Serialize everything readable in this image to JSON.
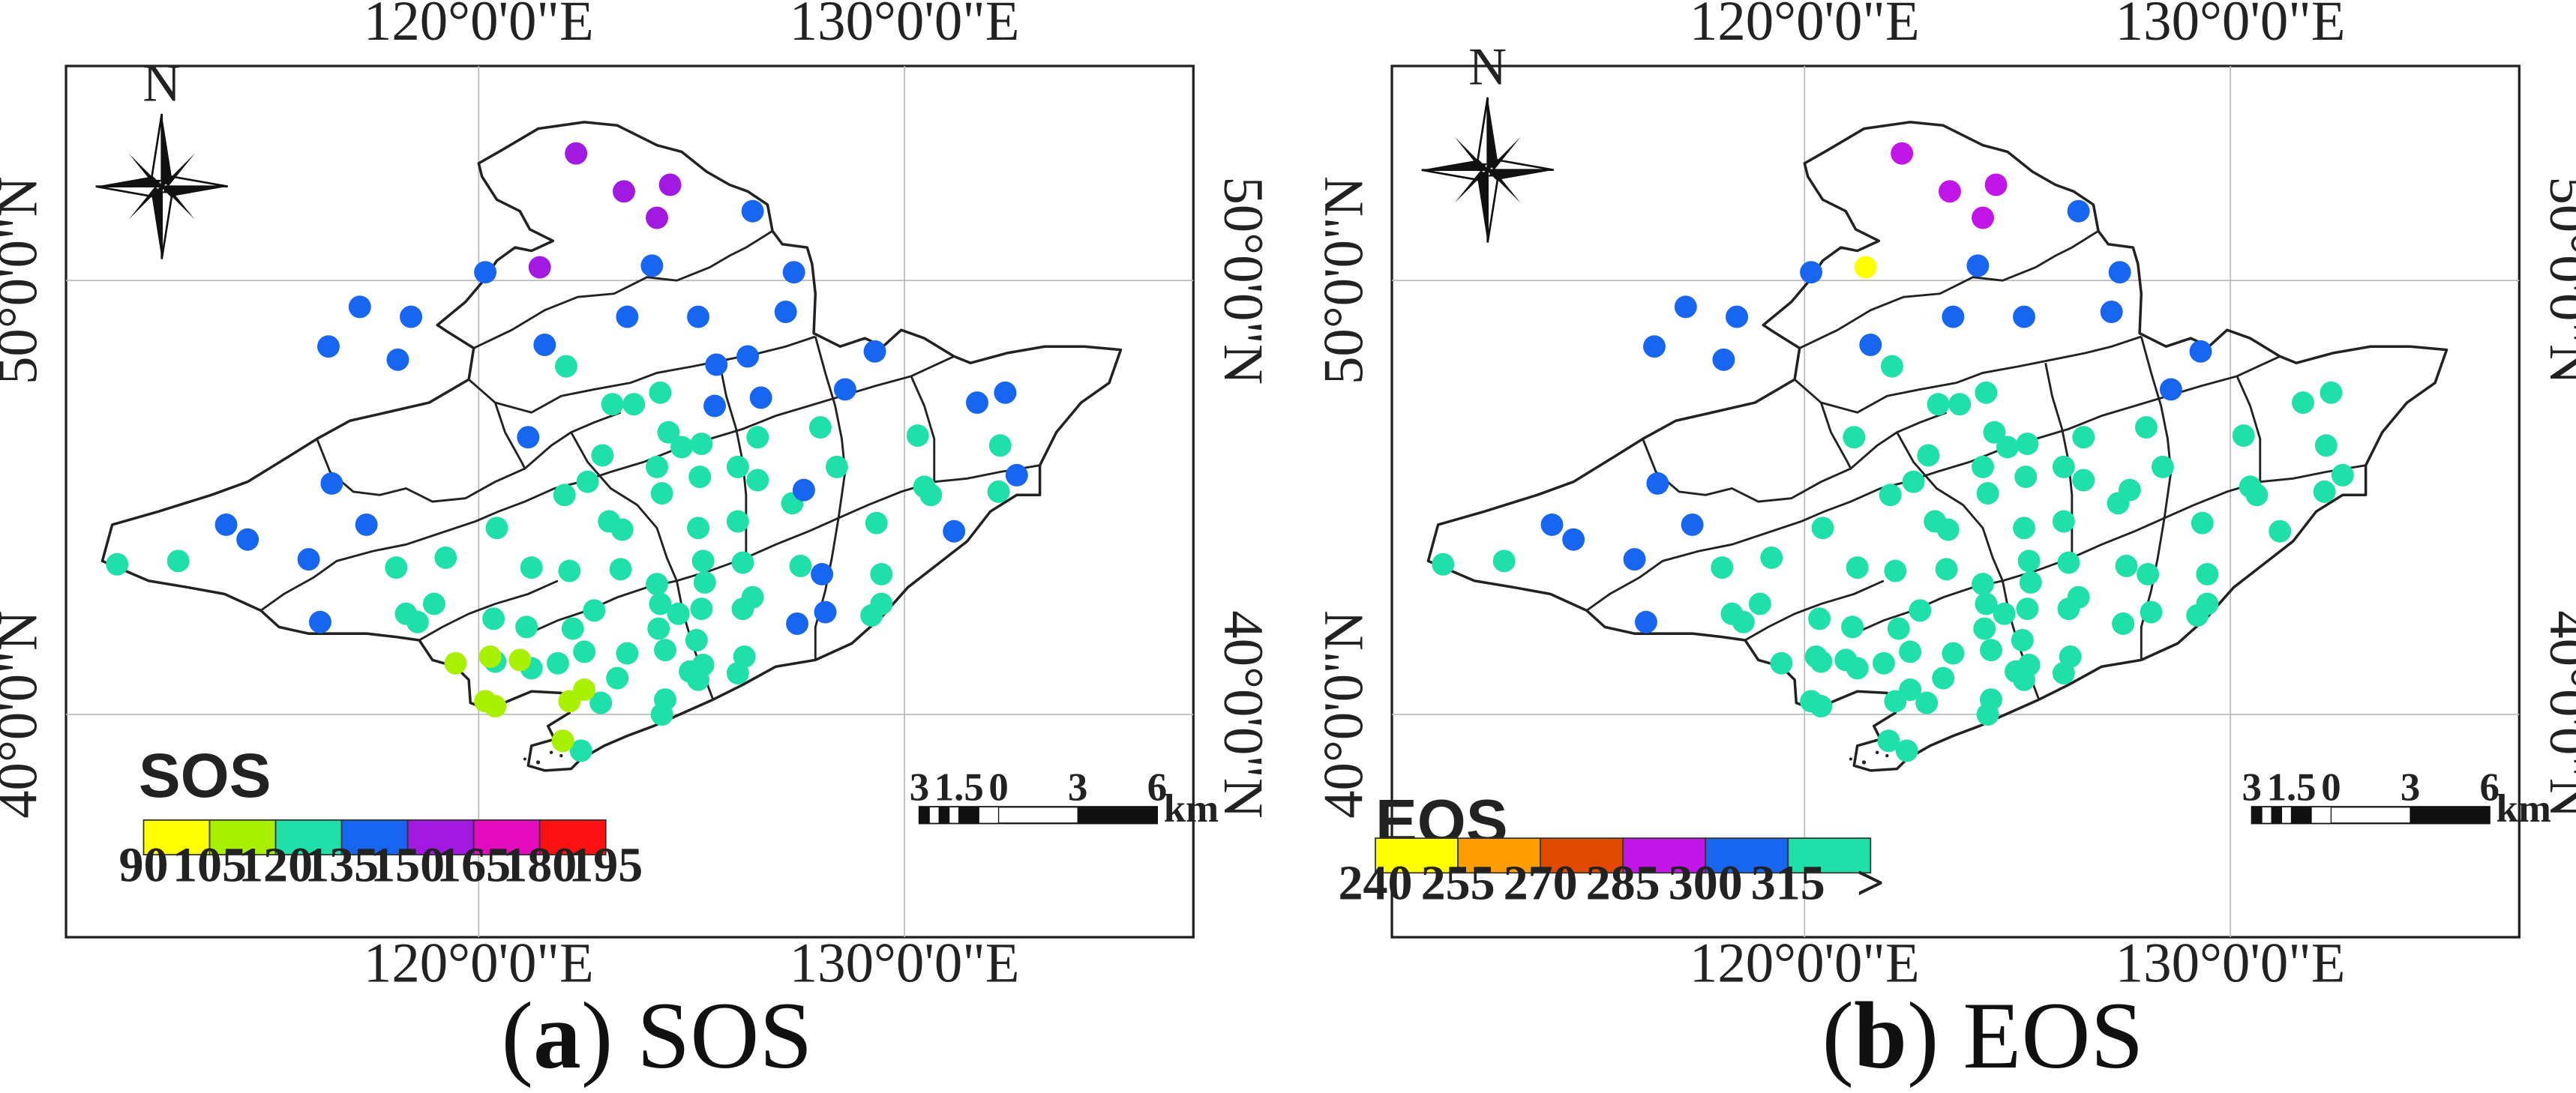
{
  "panels": [
    {
      "id": "a",
      "caption_letter": "a",
      "caption_text": " SOS",
      "caption_open": "(",
      "caption_close": ")",
      "x_ticks": [
        "120°0'0\"E",
        "130°0'0\"E"
      ],
      "y_ticks": [
        "50°0'0\"N",
        "40°0'0\"N"
      ],
      "north": "N",
      "legend": {
        "title": "SOS",
        "colors": [
          "#ffff00",
          "#a8f000",
          "#1fe0a8",
          "#1866f0",
          "#a21ae0",
          "#e20bbe",
          "#ff1111"
        ],
        "ticks": [
          "90",
          "105",
          "120",
          "135",
          "150",
          "165",
          "180",
          "195"
        ]
      },
      "scale": {
        "ticks": [
          "3",
          "1.5",
          "0",
          "3",
          "6"
        ],
        "unit": "km"
      }
    },
    {
      "id": "b",
      "caption_letter": "b",
      "caption_text": " EOS",
      "caption_open": "(",
      "caption_close": ")",
      "x_ticks": [
        "120°0'0\"E",
        "130°0'0\"E"
      ],
      "y_ticks": [
        "50°0'0\"N",
        "40°0'0\"N"
      ],
      "north": "N",
      "legend": {
        "title": "EOS",
        "colors": [
          "#ffff00",
          "#ff9e00",
          "#e04a00",
          "#c216e8",
          "#1866f0",
          "#1fe0a8"
        ],
        "ticks": [
          "240",
          "255",
          "270",
          "285",
          "300",
          "315",
          ">"
        ]
      },
      "scale": {
        "ticks": [
          "3",
          "1.5",
          "0",
          "3",
          "6"
        ],
        "unit": "km"
      }
    }
  ],
  "colors": {
    "green": "#1fe0a8",
    "blue": "#1866f0",
    "purple": "#a21ae0",
    "magenta": "#c216e8",
    "yellowgreen": "#a8f000",
    "yellow": "#ffff00",
    "outline": "#222222"
  },
  "stations_sos_green": [
    [
      71,
      342
    ],
    [
      108,
      340
    ],
    [
      253,
      377
    ],
    [
      246,
      372
    ],
    [
      263,
      366
    ],
    [
      240,
      344
    ],
    [
      270,
      338
    ],
    [
      301,
      320
    ],
    [
      322,
      344
    ],
    [
      319,
      380
    ],
    [
      299,
      375
    ],
    [
      347,
      381
    ],
    [
      345,
      346
    ],
    [
      342,
      300
    ],
    [
      356,
      292
    ],
    [
      365,
      276
    ],
    [
      371,
      245
    ],
    [
      384,
      245
    ],
    [
      400,
      238
    ],
    [
      343,
      222
    ],
    [
      398,
      283
    ],
    [
      369,
      316
    ],
    [
      377,
      321
    ],
    [
      401,
      299
    ],
    [
      424,
      289
    ],
    [
      425,
      269
    ],
    [
      447,
      283
    ],
    [
      459,
      265
    ],
    [
      459,
      291
    ],
    [
      480,
      305
    ],
    [
      447,
      316
    ],
    [
      423,
      320
    ],
    [
      426,
      340
    ],
    [
      450,
      341
    ],
    [
      485,
      343
    ],
    [
      450,
      369
    ],
    [
      425,
      369
    ],
    [
      398,
      354
    ],
    [
      376,
      345
    ],
    [
      360,
      370
    ],
    [
      399,
      381
    ],
    [
      422,
      388
    ],
    [
      403,
      394
    ],
    [
      380,
      396
    ],
    [
      354,
      395
    ],
    [
      338,
      402
    ],
    [
      322,
      405
    ],
    [
      300,
      401
    ],
    [
      374,
      411
    ],
    [
      403,
      424
    ],
    [
      401,
      433
    ],
    [
      364,
      426
    ],
    [
      352,
      455
    ],
    [
      497,
      259
    ],
    [
      507,
      283
    ],
    [
      534,
      348
    ],
    [
      534,
      366
    ],
    [
      528,
      373
    ],
    [
      531,
      317
    ],
    [
      556,
      264
    ],
    [
      560,
      295
    ],
    [
      564,
      300
    ],
    [
      605,
      298
    ],
    [
      606,
      270
    ],
    [
      405,
      262
    ],
    [
      413,
      271
    ],
    [
      451,
      398
    ],
    [
      426,
      403
    ],
    [
      418,
      407
    ],
    [
      447,
      408
    ],
    [
      423,
      412
    ],
    [
      456,
      362
    ],
    [
      427,
      353
    ],
    [
      411,
      372
    ],
    [
      400,
      366
    ]
  ],
  "stations_sos_yellowgreen": [
    [
      276,
      402
    ],
    [
      297,
      398
    ],
    [
      315,
      400
    ],
    [
      294,
      425
    ],
    [
      300,
      428
    ],
    [
      345,
      425
    ],
    [
      354,
      418
    ],
    [
      341,
      449
    ]
  ],
  "stations_sos_blue": [
    [
      294,
      165
    ],
    [
      218,
      186
    ],
    [
      249,
      192
    ],
    [
      199,
      210
    ],
    [
      241,
      218
    ],
    [
      330,
      209
    ],
    [
      380,
      192
    ],
    [
      395,
      161
    ],
    [
      423,
      192
    ],
    [
      481,
      165
    ],
    [
      476,
      189
    ],
    [
      456,
      128
    ],
    [
      434,
      221
    ],
    [
      453,
      216
    ],
    [
      530,
      213
    ],
    [
      512,
      236
    ],
    [
      461,
      241
    ],
    [
      433,
      246
    ],
    [
      320,
      265
    ],
    [
      201,
      293
    ],
    [
      222,
      318
    ],
    [
      187,
      339
    ],
    [
      194,
      377
    ],
    [
      137,
      318
    ],
    [
      150,
      327
    ],
    [
      578,
      322
    ],
    [
      498,
      348
    ],
    [
      500,
      371
    ],
    [
      483,
      378
    ],
    [
      592,
      244
    ],
    [
      609,
      238
    ],
    [
      616,
      288
    ],
    [
      487,
      297
    ]
  ],
  "stations_sos_purple": [
    [
      349,
      93
    ],
    [
      378,
      116
    ],
    [
      406,
      112
    ],
    [
      398,
      132
    ],
    [
      327,
      162
    ]
  ],
  "stations_eos_green": [
    [
      71,
      342
    ],
    [
      108,
      340
    ],
    [
      253,
      377
    ],
    [
      246,
      372
    ],
    [
      263,
      366
    ],
    [
      240,
      344
    ],
    [
      270,
      338
    ],
    [
      301,
      320
    ],
    [
      322,
      344
    ],
    [
      319,
      380
    ],
    [
      299,
      375
    ],
    [
      347,
      381
    ],
    [
      345,
      346
    ],
    [
      342,
      300
    ],
    [
      356,
      292
    ],
    [
      365,
      276
    ],
    [
      371,
      245
    ],
    [
      384,
      245
    ],
    [
      400,
      238
    ],
    [
      343,
      222
    ],
    [
      398,
      283
    ],
    [
      369,
      316
    ],
    [
      377,
      321
    ],
    [
      401,
      299
    ],
    [
      424,
      289
    ],
    [
      425,
      269
    ],
    [
      447,
      283
    ],
    [
      459,
      265
    ],
    [
      459,
      291
    ],
    [
      480,
      305
    ],
    [
      447,
      316
    ],
    [
      423,
      320
    ],
    [
      426,
      340
    ],
    [
      450,
      341
    ],
    [
      485,
      343
    ],
    [
      450,
      369
    ],
    [
      425,
      369
    ],
    [
      398,
      354
    ],
    [
      376,
      345
    ],
    [
      360,
      370
    ],
    [
      399,
      381
    ],
    [
      422,
      388
    ],
    [
      403,
      394
    ],
    [
      380,
      396
    ],
    [
      354,
      395
    ],
    [
      338,
      402
    ],
    [
      322,
      405
    ],
    [
      300,
      401
    ],
    [
      374,
      411
    ],
    [
      403,
      424
    ],
    [
      401,
      433
    ],
    [
      364,
      426
    ],
    [
      352,
      455
    ],
    [
      497,
      259
    ],
    [
      507,
      283
    ],
    [
      534,
      348
    ],
    [
      534,
      366
    ],
    [
      528,
      373
    ],
    [
      531,
      317
    ],
    [
      556,
      264
    ],
    [
      560,
      295
    ],
    [
      564,
      300
    ],
    [
      605,
      298
    ],
    [
      606,
      270
    ],
    [
      405,
      262
    ],
    [
      413,
      271
    ],
    [
      451,
      398
    ],
    [
      426,
      403
    ],
    [
      418,
      407
    ],
    [
      447,
      408
    ],
    [
      423,
      412
    ],
    [
      456,
      362
    ],
    [
      427,
      353
    ],
    [
      411,
      372
    ],
    [
      400,
      366
    ],
    [
      276,
      402
    ],
    [
      297,
      398
    ],
    [
      315,
      400
    ],
    [
      294,
      425
    ],
    [
      300,
      428
    ],
    [
      345,
      425
    ],
    [
      354,
      418
    ],
    [
      341,
      449
    ],
    [
      320,
      265
    ],
    [
      578,
      322
    ],
    [
      498,
      348
    ],
    [
      500,
      371
    ],
    [
      483,
      378
    ],
    [
      592,
      244
    ],
    [
      609,
      238
    ],
    [
      616,
      288
    ],
    [
      487,
      297
    ]
  ],
  "stations_eos_blue": [
    [
      294,
      165
    ],
    [
      218,
      186
    ],
    [
      249,
      192
    ],
    [
      199,
      210
    ],
    [
      241,
      218
    ],
    [
      330,
      209
    ],
    [
      380,
      192
    ],
    [
      395,
      161
    ],
    [
      423,
      192
    ],
    [
      481,
      165
    ],
    [
      476,
      189
    ],
    [
      456,
      128
    ],
    [
      530,
      213
    ],
    [
      512,
      236
    ],
    [
      201,
      293
    ],
    [
      222,
      318
    ],
    [
      187,
      339
    ],
    [
      194,
      377
    ],
    [
      137,
      318
    ],
    [
      150,
      327
    ]
  ],
  "stations_eos_magenta": [
    [
      349,
      93
    ],
    [
      378,
      116
    ],
    [
      406,
      112
    ],
    [
      398,
      132
    ]
  ],
  "stations_eos_yellow": [
    [
      327,
      162
    ]
  ]
}
